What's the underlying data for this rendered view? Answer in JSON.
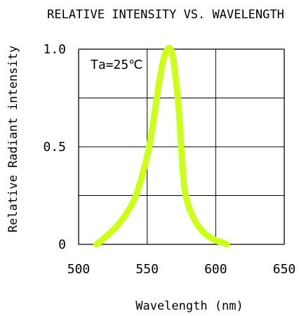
{
  "chart_data": {
    "type": "line",
    "title": "RELATIVE INTENSITY VS. WAVELENGTH",
    "xlabel": "Wavelength (nm)",
    "ylabel": "Relative Radiant intensity",
    "xlim": [
      500,
      650
    ],
    "ylim": [
      0,
      1.0
    ],
    "x_ticks": [
      "500",
      "550",
      "600",
      "650"
    ],
    "y_ticks": [
      "0",
      "0.5",
      "1.0"
    ],
    "grid": true,
    "annotation": "Ta=25℃",
    "series": [
      {
        "color": "#ccff1a",
        "x": [
          513,
          520,
          530,
          540,
          545,
          550,
          553,
          556,
          559,
          562,
          565,
          567,
          569,
          571,
          573,
          575,
          577,
          580,
          585,
          590,
          595,
          600,
          605,
          608
        ],
        "y": [
          0.0,
          0.04,
          0.11,
          0.22,
          0.32,
          0.45,
          0.56,
          0.7,
          0.84,
          0.95,
          1.0,
          1.0,
          0.95,
          0.84,
          0.7,
          0.48,
          0.3,
          0.2,
          0.12,
          0.07,
          0.04,
          0.02,
          0.01,
          0.0
        ]
      }
    ]
  }
}
